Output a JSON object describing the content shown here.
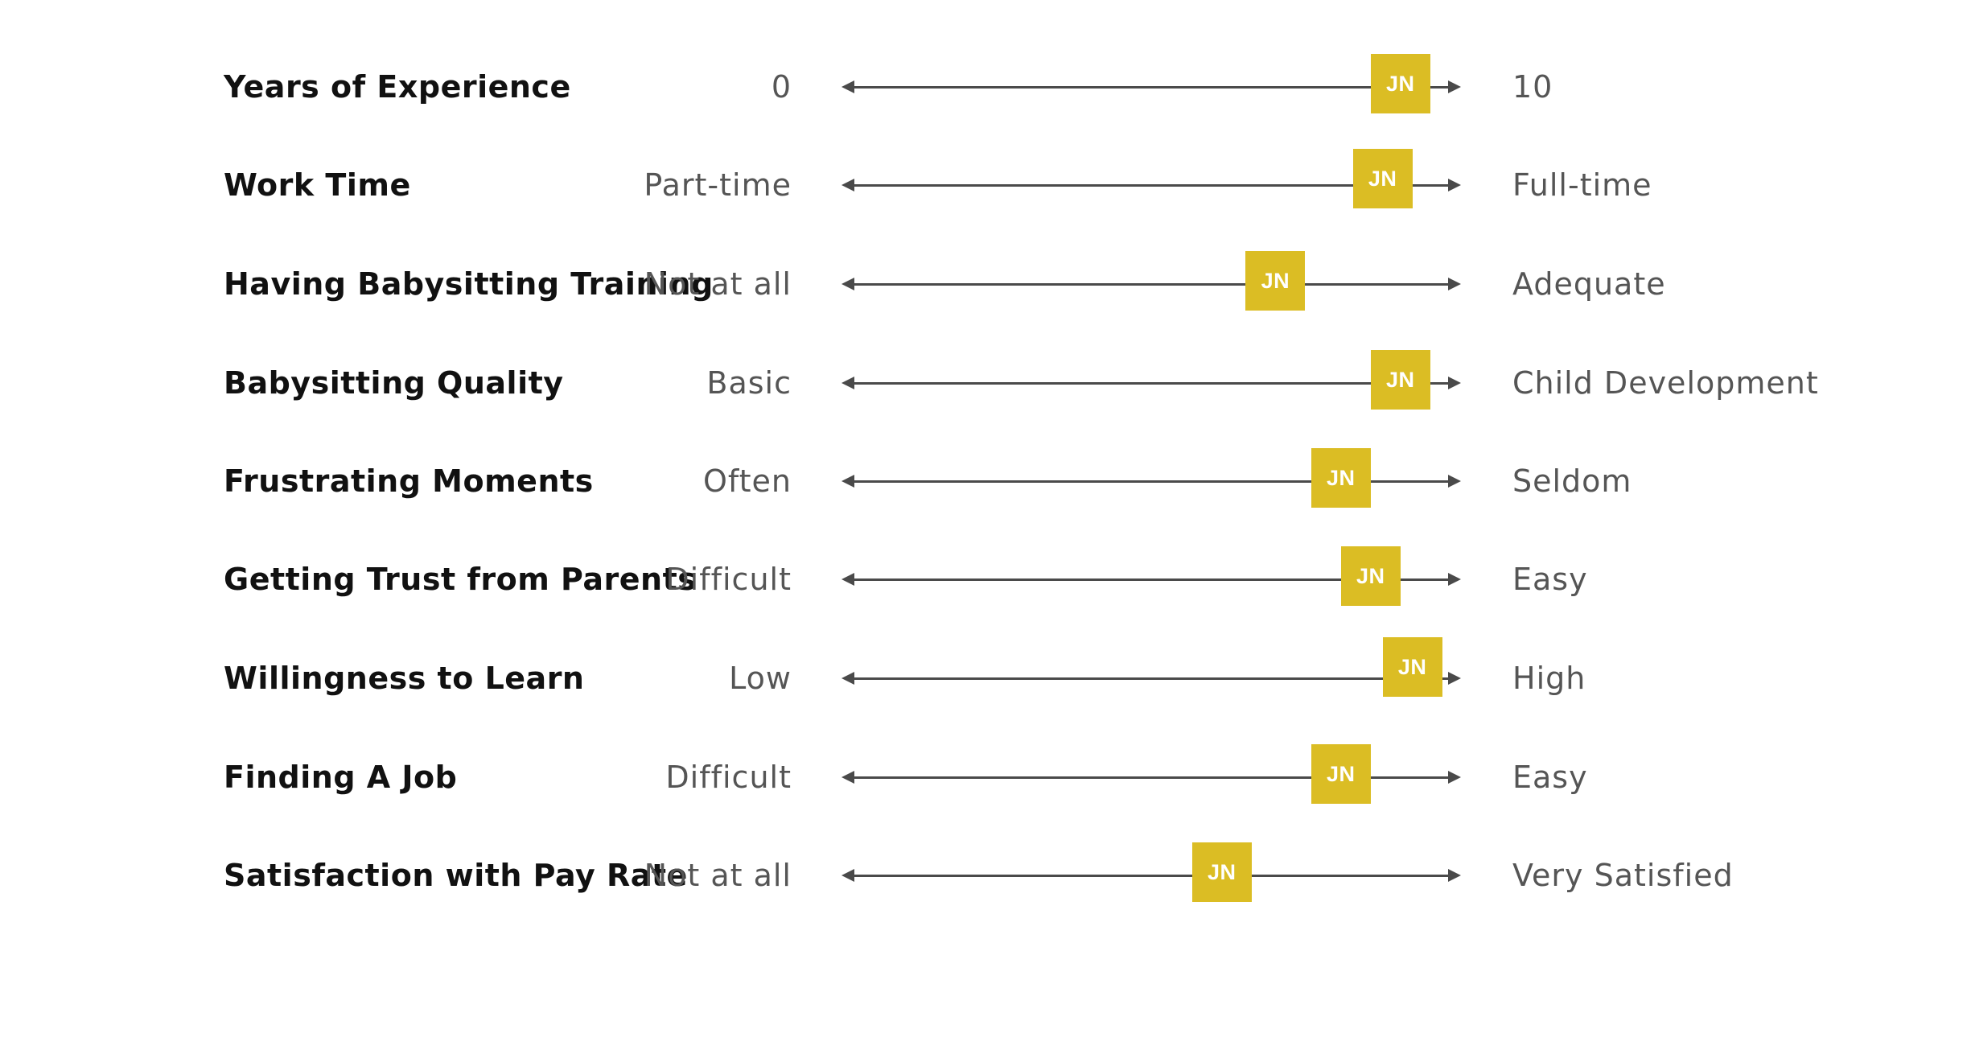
{
  "marker_label": "JN",
  "marker_color": "#dbbd24",
  "axis_color": "#4a4a4a",
  "scale_max": 10,
  "rows": [
    {
      "attribute": "Years of Experience",
      "min_label": "0",
      "max_label": "10",
      "score": 9.2
    },
    {
      "attribute": "Work Time",
      "min_label": "Part-time",
      "max_label": "Full-time",
      "score": 8.9
    },
    {
      "attribute": "Having Babysitting Training",
      "min_label": "Not at all",
      "max_label": "Adequate",
      "score": 7.1
    },
    {
      "attribute": "Babysitting Quality",
      "min_label": "Basic",
      "max_label": "Child Development",
      "score": 9.2
    },
    {
      "attribute": "Frustrating Moments",
      "min_label": "Often",
      "max_label": "Seldom",
      "score": 8.2
    },
    {
      "attribute": "Getting Trust from Parents",
      "min_label": "Difficult",
      "max_label": "Easy",
      "score": 8.7
    },
    {
      "attribute": "Willingness to Learn",
      "min_label": "Low",
      "max_label": "High",
      "score": 9.4
    },
    {
      "attribute": "Finding A Job",
      "min_label": "Difficult",
      "max_label": "Easy",
      "score": 8.2
    },
    {
      "attribute": "Satisfaction with Pay Rate",
      "min_label": "Not at all",
      "max_label": "Very Satisfied",
      "score": 6.2
    }
  ]
}
